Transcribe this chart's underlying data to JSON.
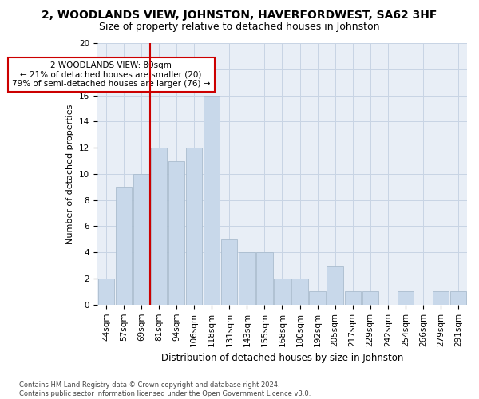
{
  "title1": "2, WOODLANDS VIEW, JOHNSTON, HAVERFORDWEST, SA62 3HF",
  "title2": "Size of property relative to detached houses in Johnston",
  "xlabel": "Distribution of detached houses by size in Johnston",
  "ylabel": "Number of detached properties",
  "categories": [
    "44sqm",
    "57sqm",
    "69sqm",
    "81sqm",
    "94sqm",
    "106sqm",
    "118sqm",
    "131sqm",
    "143sqm",
    "155sqm",
    "168sqm",
    "180sqm",
    "192sqm",
    "205sqm",
    "217sqm",
    "229sqm",
    "242sqm",
    "254sqm",
    "266sqm",
    "279sqm",
    "291sqm"
  ],
  "values": [
    2,
    9,
    10,
    12,
    11,
    12,
    16,
    5,
    4,
    4,
    2,
    2,
    1,
    3,
    1,
    1,
    0,
    1,
    0,
    1,
    1
  ],
  "bar_color": "#c8d8ea",
  "bar_edge_color": "#aabcce",
  "vline_color": "#cc0000",
  "vline_x": 2.5,
  "annotation_text": "2 WOODLANDS VIEW: 80sqm\n← 21% of detached houses are smaller (20)\n79% of semi-detached houses are larger (76) →",
  "annotation_box_color": "white",
  "annotation_box_edge": "#cc0000",
  "ylim": [
    0,
    20
  ],
  "yticks": [
    0,
    2,
    4,
    6,
    8,
    10,
    12,
    14,
    16,
    18,
    20
  ],
  "grid_color": "#c8d4e4",
  "bg_color": "#e8eef6",
  "footnote": "Contains HM Land Registry data © Crown copyright and database right 2024.\nContains public sector information licensed under the Open Government Licence v3.0.",
  "title1_fontsize": 10,
  "title2_fontsize": 9,
  "xlabel_fontsize": 8.5,
  "ylabel_fontsize": 8,
  "tick_fontsize": 7.5,
  "annot_fontsize": 7.5,
  "footnote_fontsize": 6
}
